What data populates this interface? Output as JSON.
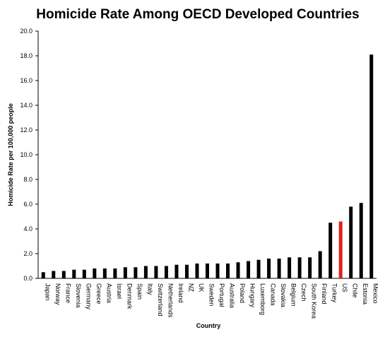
{
  "chart_data": {
    "type": "bar",
    "title": "Homicide Rate Among OECD Developed Countries",
    "xlabel": "Country",
    "ylabel": "Homicide Rate per 100,000 people",
    "ylim": [
      0,
      20
    ],
    "yticks": [
      "0.0",
      "2.0",
      "4.0",
      "6.0",
      "8.0",
      "10.0",
      "12.0",
      "14.0",
      "16.0",
      "18.0",
      "20.0"
    ],
    "grid": false,
    "legend": "none",
    "categories": [
      "Japan",
      "Norway",
      "France",
      "Slovenia",
      "Germany",
      "Greece",
      "Austria",
      "Israel",
      "Denmark",
      "Spain",
      "Italy",
      "Switzerland",
      "Netherlands",
      "Ireland",
      "NZ",
      "UK",
      "Sweden",
      "Portugal",
      "Australia",
      "Poland",
      "Hungary",
      "Luxemborg",
      "Canada",
      "Slovakia",
      "Belgium",
      "Czech",
      "South Korea",
      "Finland",
      "Turkey",
      "US",
      "Chile",
      "Estonia",
      "Mexico"
    ],
    "values": [
      0.5,
      0.6,
      0.6,
      0.7,
      0.7,
      0.8,
      0.8,
      0.8,
      0.9,
      0.9,
      1.0,
      1.0,
      1.0,
      1.1,
      1.1,
      1.2,
      1.2,
      1.2,
      1.2,
      1.3,
      1.4,
      1.5,
      1.6,
      1.6,
      1.7,
      1.7,
      1.7,
      2.2,
      4.5,
      4.6,
      5.8,
      6.1,
      18.1
    ],
    "highlight_category": "US",
    "bar_color": "#000000",
    "highlight_color": "#e02020"
  }
}
